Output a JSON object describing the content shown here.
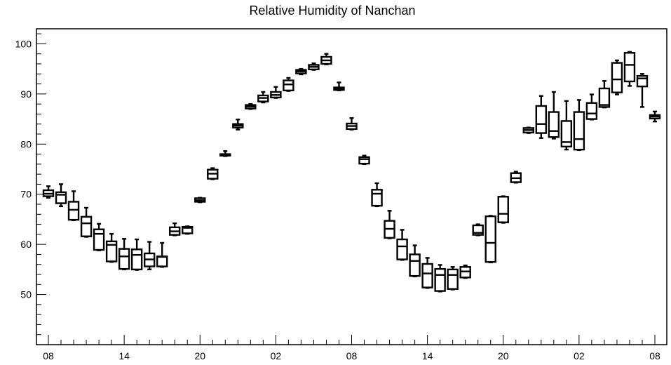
{
  "chart_data": {
    "type": "box",
    "title": "Relative Humidity of Nanchan",
    "xlabel": "",
    "ylabel": "",
    "xlim": [
      0,
      48
    ],
    "ylim": [
      40,
      103
    ],
    "x_tick_labels": [
      {
        "x": 0,
        "label": "08"
      },
      {
        "x": 6,
        "label": "14"
      },
      {
        "x": 12,
        "label": "20"
      },
      {
        "x": 18,
        "label": "02"
      },
      {
        "x": 24,
        "label": "08"
      },
      {
        "x": 30,
        "label": "14"
      },
      {
        "x": 36,
        "label": "20"
      },
      {
        "x": 42,
        "label": "02"
      },
      {
        "x": 48,
        "label": "08"
      }
    ],
    "y_ticks": [
      50,
      60,
      70,
      80,
      90,
      100
    ],
    "grid": false,
    "boxes": [
      {
        "x": 0,
        "whisker_low": 69.3,
        "q1": 69.6,
        "median": 70.1,
        "q3": 70.8,
        "whisker_high": 71.6
      },
      {
        "x": 1,
        "whisker_low": 67.6,
        "q1": 68.2,
        "median": 69.9,
        "q3": 70.4,
        "whisker_high": 72.0
      },
      {
        "x": 2,
        "whisker_low": 64.8,
        "q1": 64.9,
        "median": 66.9,
        "q3": 68.5,
        "whisker_high": 70.6
      },
      {
        "x": 3,
        "whisker_low": 61.5,
        "q1": 61.6,
        "median": 64.2,
        "q3": 65.5,
        "whisker_high": 67.3
      },
      {
        "x": 4,
        "whisker_low": 58.8,
        "q1": 58.9,
        "median": 62.1,
        "q3": 63.0,
        "whisker_high": 64.1
      },
      {
        "x": 5,
        "whisker_low": 56.5,
        "q1": 56.6,
        "median": 59.9,
        "q3": 60.6,
        "whisker_high": 62.1
      },
      {
        "x": 6,
        "whisker_low": 55.0,
        "q1": 55.1,
        "median": 57.6,
        "q3": 59.1,
        "whisker_high": 61.1
      },
      {
        "x": 7,
        "whisker_low": 54.9,
        "q1": 55.0,
        "median": 57.9,
        "q3": 59.0,
        "whisker_high": 61.0
      },
      {
        "x": 8,
        "whisker_low": 55.0,
        "q1": 55.6,
        "median": 57.0,
        "q3": 58.2,
        "whisker_high": 60.5
      },
      {
        "x": 9,
        "whisker_low": 55.5,
        "q1": 55.6,
        "median": 57.5,
        "q3": 57.6,
        "whisker_high": 60.3
      },
      {
        "x": 10,
        "whisker_low": 61.8,
        "q1": 61.9,
        "median": 62.6,
        "q3": 63.4,
        "whisker_high": 64.2
      },
      {
        "x": 11,
        "whisker_low": 62.1,
        "q1": 62.2,
        "median": 63.3,
        "q3": 63.5,
        "whisker_high": 63.6
      },
      {
        "x": 12,
        "whisker_low": 68.4,
        "q1": 68.5,
        "median": 68.8,
        "q3": 69.2,
        "whisker_high": 69.3
      },
      {
        "x": 13,
        "whisker_low": 73.0,
        "q1": 73.1,
        "median": 74.1,
        "q3": 74.9,
        "whisker_high": 75.2
      },
      {
        "x": 14,
        "whisker_low": 77.6,
        "q1": 77.7,
        "median": 77.9,
        "q3": 78.0,
        "whisker_high": 78.6
      },
      {
        "x": 15,
        "whisker_low": 82.9,
        "q1": 83.3,
        "median": 83.7,
        "q3": 84.0,
        "whisker_high": 84.9
      },
      {
        "x": 16,
        "whisker_low": 87.0,
        "q1": 87.1,
        "median": 87.5,
        "q3": 87.8,
        "whisker_high": 88.0
      },
      {
        "x": 17,
        "whisker_low": 88.3,
        "q1": 88.5,
        "median": 89.2,
        "q3": 89.7,
        "whisker_high": 90.4
      },
      {
        "x": 18,
        "whisker_low": 89.2,
        "q1": 89.3,
        "median": 89.8,
        "q3": 90.4,
        "whisker_high": 91.4
      },
      {
        "x": 19,
        "whisker_low": 90.6,
        "q1": 90.7,
        "median": 91.9,
        "q3": 92.7,
        "whisker_high": 93.2
      },
      {
        "x": 20,
        "whisker_low": 93.9,
        "q1": 94.1,
        "median": 94.5,
        "q3": 94.8,
        "whisker_high": 95.0
      },
      {
        "x": 21,
        "whisker_low": 94.8,
        "q1": 94.9,
        "median": 95.4,
        "q3": 95.8,
        "whisker_high": 96.1
      },
      {
        "x": 22,
        "whisker_low": 95.9,
        "q1": 96.0,
        "median": 96.7,
        "q3": 97.4,
        "whisker_high": 98.0
      },
      {
        "x": 23,
        "whisker_low": 90.7,
        "q1": 90.8,
        "median": 91.0,
        "q3": 91.3,
        "whisker_high": 92.3
      },
      {
        "x": 24,
        "whisker_low": 82.9,
        "q1": 83.0,
        "median": 83.6,
        "q3": 84.1,
        "whisker_high": 85.2
      },
      {
        "x": 25,
        "whisker_low": 76.0,
        "q1": 76.1,
        "median": 77.0,
        "q3": 77.4,
        "whisker_high": 77.7
      },
      {
        "x": 26,
        "whisker_low": 67.6,
        "q1": 67.7,
        "median": 70.1,
        "q3": 70.9,
        "whisker_high": 72.2
      },
      {
        "x": 27,
        "whisker_low": 61.2,
        "q1": 61.3,
        "median": 63.1,
        "q3": 64.7,
        "whisker_high": 66.7
      },
      {
        "x": 28,
        "whisker_low": 56.9,
        "q1": 57.0,
        "median": 59.6,
        "q3": 61.0,
        "whisker_high": 62.9
      },
      {
        "x": 29,
        "whisker_low": 53.6,
        "q1": 53.7,
        "median": 56.7,
        "q3": 58.0,
        "whisker_high": 59.8
      },
      {
        "x": 30,
        "whisker_low": 51.3,
        "q1": 51.4,
        "median": 54.2,
        "q3": 56.1,
        "whisker_high": 57.3
      },
      {
        "x": 31,
        "whisker_low": 50.6,
        "q1": 50.7,
        "median": 53.9,
        "q3": 55.1,
        "whisker_high": 55.9
      },
      {
        "x": 32,
        "whisker_low": 51.0,
        "q1": 51.1,
        "median": 53.9,
        "q3": 55.0,
        "whisker_high": 55.5
      },
      {
        "x": 33,
        "whisker_low": 53.3,
        "q1": 53.4,
        "median": 54.6,
        "q3": 55.5,
        "whisker_high": 55.8
      },
      {
        "x": 34,
        "whisker_low": 61.8,
        "q1": 61.9,
        "median": 62.3,
        "q3": 63.8,
        "whisker_high": 64.0
      },
      {
        "x": 35,
        "whisker_low": 56.4,
        "q1": 56.5,
        "median": 60.3,
        "q3": 65.6,
        "whisker_high": 65.7
      },
      {
        "x": 36,
        "whisker_low": 64.3,
        "q1": 64.4,
        "median": 66.1,
        "q3": 69.5,
        "whisker_high": 69.6
      },
      {
        "x": 37,
        "whisker_low": 72.3,
        "q1": 72.4,
        "median": 73.2,
        "q3": 74.2,
        "whisker_high": 74.5
      },
      {
        "x": 38,
        "whisker_low": 82.2,
        "q1": 82.3,
        "median": 82.8,
        "q3": 83.2,
        "whisker_high": 83.3
      },
      {
        "x": 39,
        "whisker_low": 81.2,
        "q1": 82.2,
        "median": 84.0,
        "q3": 87.6,
        "whisker_high": 89.6
      },
      {
        "x": 40,
        "whisker_low": 81.1,
        "q1": 81.4,
        "median": 82.6,
        "q3": 86.4,
        "whisker_high": 90.4
      },
      {
        "x": 41,
        "whisker_low": 78.9,
        "q1": 79.5,
        "median": 80.4,
        "q3": 84.6,
        "whisker_high": 88.6
      },
      {
        "x": 42,
        "whisker_low": 78.8,
        "q1": 78.9,
        "median": 81.0,
        "q3": 86.4,
        "whisker_high": 88.8
      },
      {
        "x": 43,
        "whisker_low": 84.9,
        "q1": 85.0,
        "median": 86.1,
        "q3": 88.2,
        "whisker_high": 89.9
      },
      {
        "x": 44,
        "whisker_low": 87.3,
        "q1": 87.4,
        "median": 87.8,
        "q3": 91.1,
        "whisker_high": 92.6
      },
      {
        "x": 45,
        "whisker_low": 89.9,
        "q1": 90.3,
        "median": 92.9,
        "q3": 96.2,
        "whisker_high": 96.7
      },
      {
        "x": 46,
        "whisker_low": 91.6,
        "q1": 92.5,
        "median": 95.8,
        "q3": 98.2,
        "whisker_high": 98.4
      },
      {
        "x": 47,
        "whisker_low": 87.4,
        "q1": 91.5,
        "median": 93.1,
        "q3": 93.6,
        "whisker_high": 94.0
      },
      {
        "x": 48,
        "whisker_low": 84.5,
        "q1": 85.1,
        "median": 85.5,
        "q3": 85.8,
        "whisker_high": 86.5
      }
    ]
  }
}
